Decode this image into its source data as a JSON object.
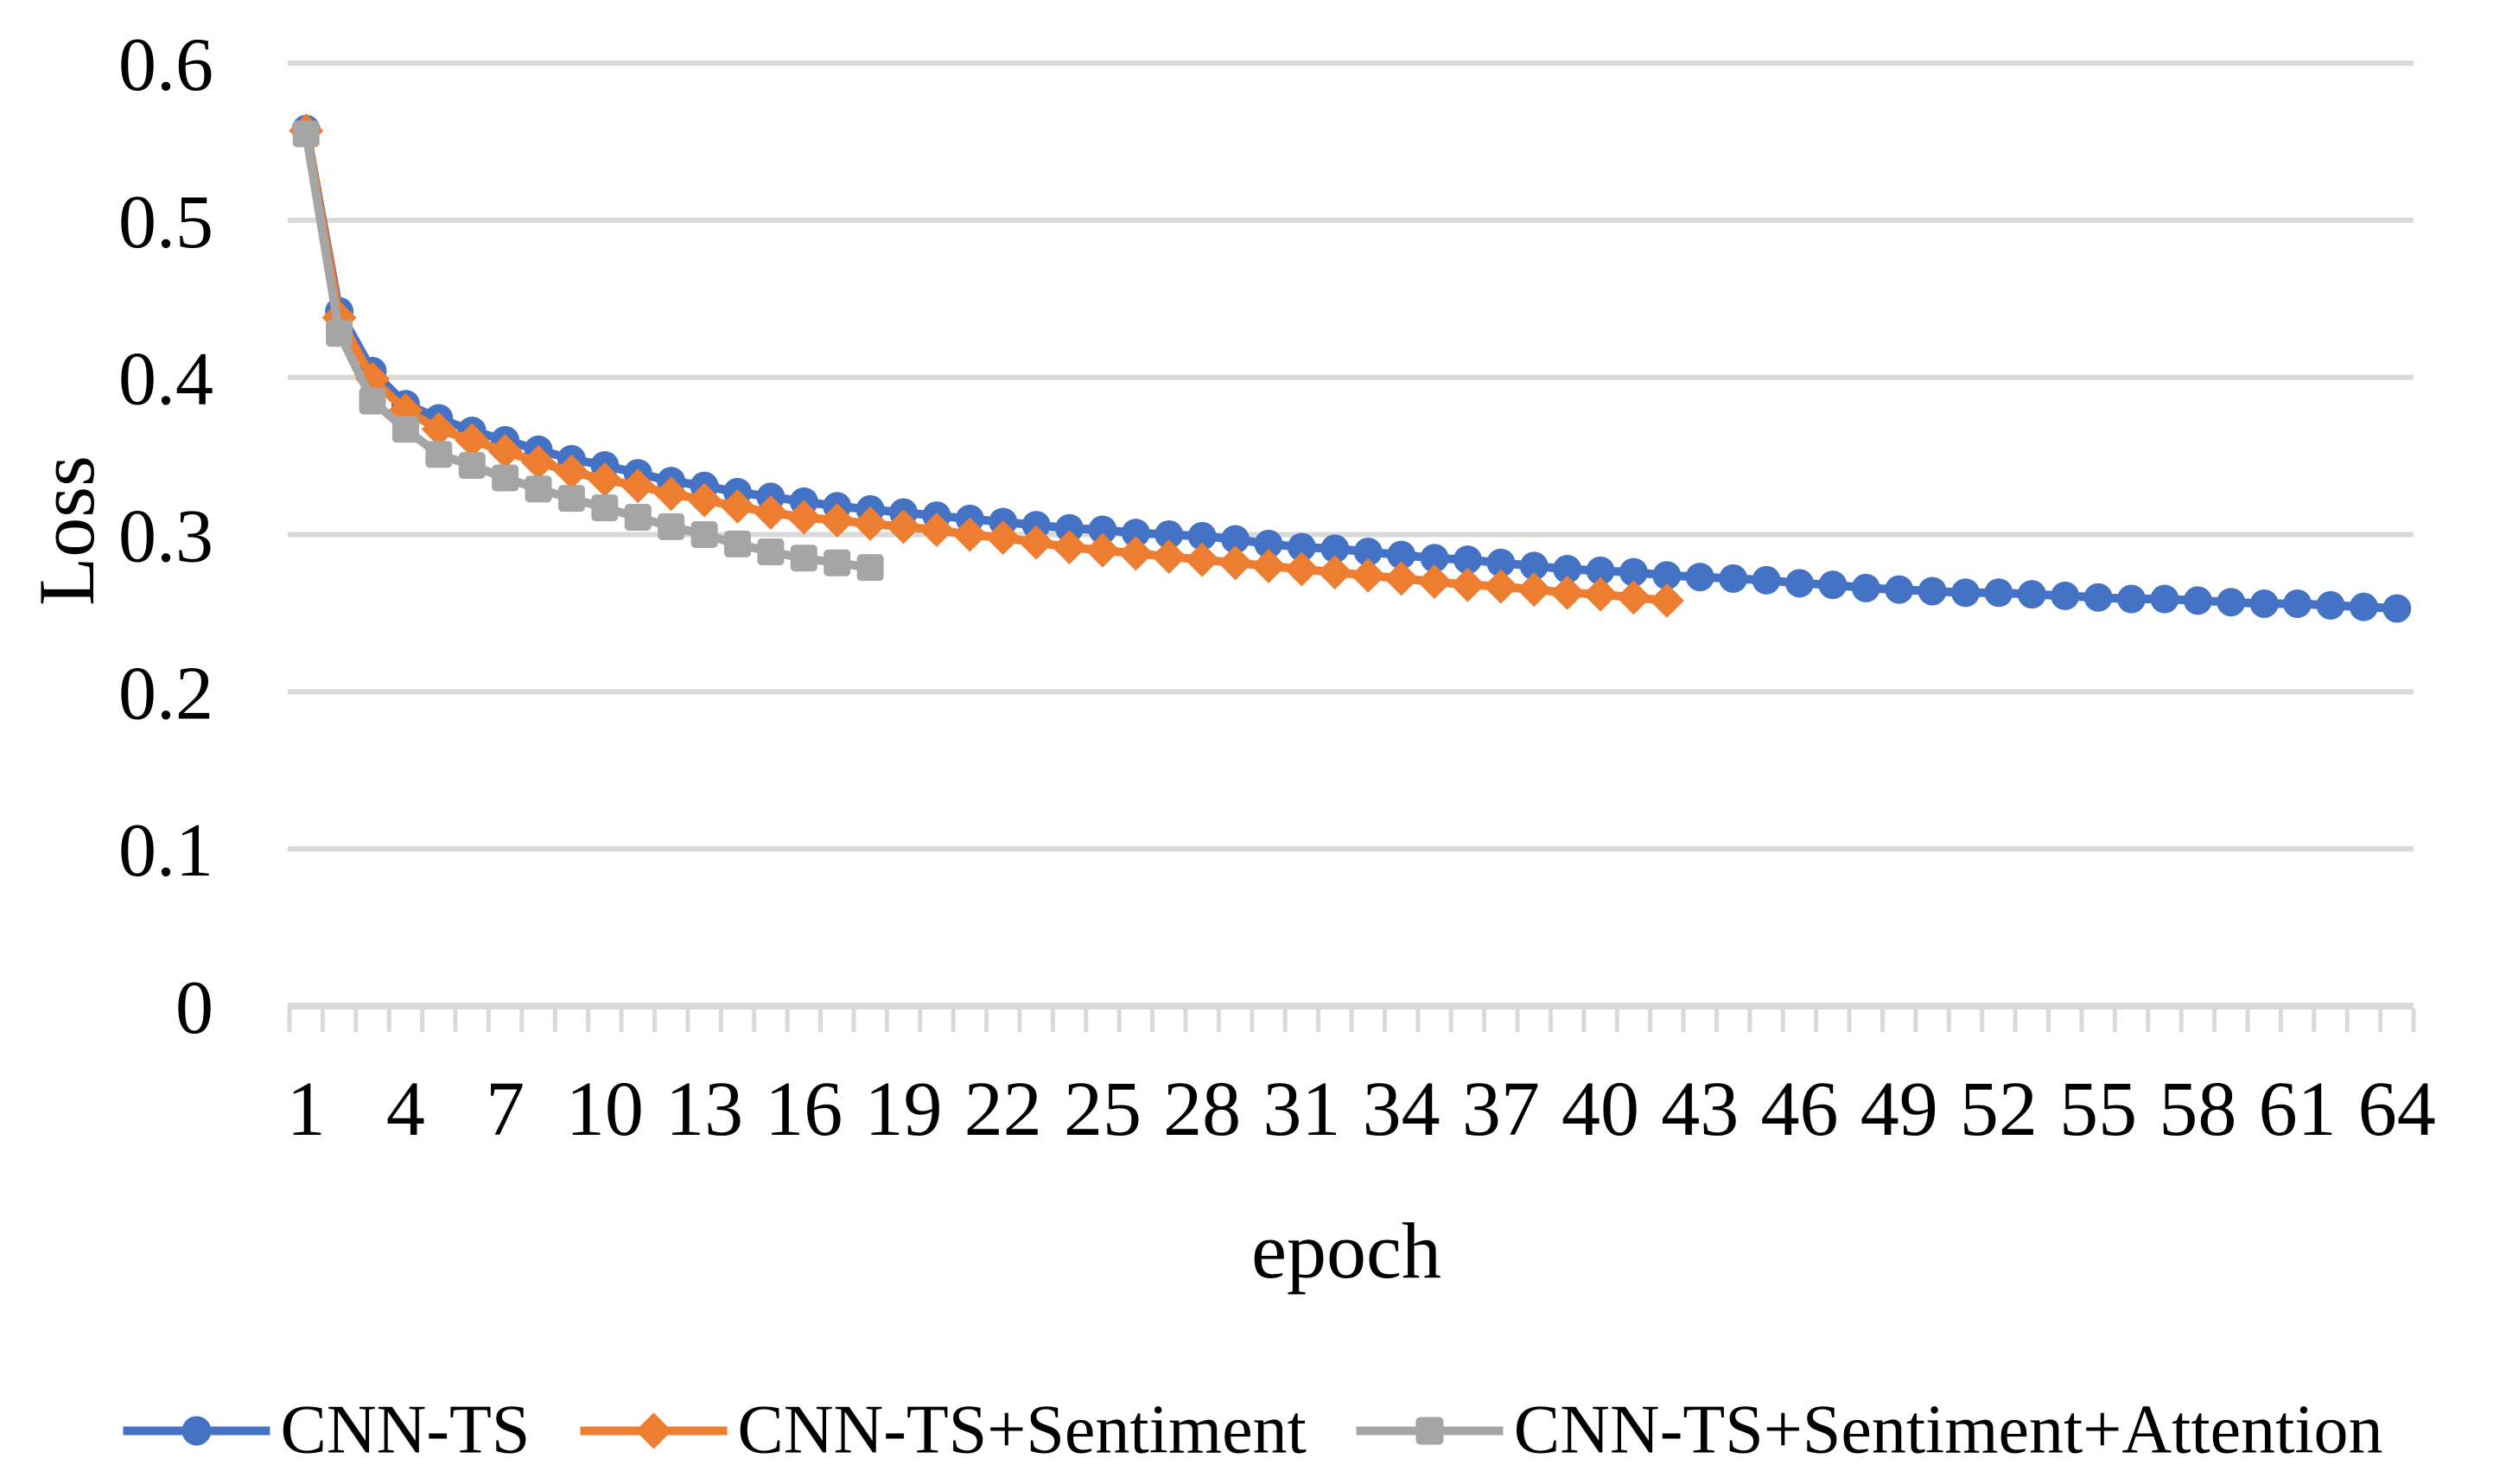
{
  "chart_data": {
    "type": "line",
    "title": "",
    "xlabel": "epoch",
    "ylabel": "Loss",
    "ylim": [
      0,
      0.6
    ],
    "grid": true,
    "legend_position": "bottom",
    "y_ticks": [
      0,
      0.1,
      0.2,
      0.3,
      0.4,
      0.5,
      0.6
    ],
    "y_tick_labels": [
      "0",
      "0.1",
      "0.2",
      "0.3",
      "0.4",
      "0.5",
      "0.6"
    ],
    "x_tick_labels": [
      "1",
      "4",
      "7",
      "10",
      "13",
      "16",
      "19",
      "22",
      "25",
      "28",
      "31",
      "34",
      "37",
      "40",
      "43",
      "46",
      "49",
      "52",
      "55",
      "58",
      "61",
      "64"
    ],
    "x_ticks": [
      1,
      4,
      7,
      10,
      13,
      16,
      19,
      22,
      25,
      28,
      31,
      34,
      37,
      40,
      43,
      46,
      49,
      52,
      55,
      58,
      61,
      64
    ],
    "x_categories": 64,
    "minor_tick_interval": 1,
    "colors": {
      "gridline": "#D9D9D9",
      "axis_line": "#D9D9D9",
      "text": "#000000",
      "background": "#FFFFFF"
    },
    "series": [
      {
        "name": "CNN-TS",
        "color": "#4472C4",
        "marker": "circle",
        "x_start": 1,
        "values": [
          0.558,
          0.442,
          0.404,
          0.383,
          0.374,
          0.366,
          0.36,
          0.354,
          0.348,
          0.344,
          0.339,
          0.334,
          0.331,
          0.327,
          0.324,
          0.321,
          0.318,
          0.316,
          0.314,
          0.312,
          0.31,
          0.308,
          0.306,
          0.304,
          0.303,
          0.301,
          0.3,
          0.299,
          0.297,
          0.294,
          0.292,
          0.291,
          0.289,
          0.287,
          0.285,
          0.284,
          0.282,
          0.28,
          0.278,
          0.277,
          0.276,
          0.274,
          0.273,
          0.272,
          0.271,
          0.269,
          0.268,
          0.266,
          0.265,
          0.264,
          0.263,
          0.263,
          0.262,
          0.261,
          0.26,
          0.259,
          0.259,
          0.258,
          0.257,
          0.256,
          0.256,
          0.255,
          0.254,
          0.253
        ]
      },
      {
        "name": "CNN-TS+Sentiment",
        "color": "#ED7D31",
        "marker": "diamond",
        "x_start": 1,
        "values": [
          0.557,
          0.438,
          0.399,
          0.379,
          0.367,
          0.36,
          0.353,
          0.346,
          0.34,
          0.335,
          0.331,
          0.326,
          0.322,
          0.318,
          0.314,
          0.311,
          0.309,
          0.307,
          0.305,
          0.303,
          0.3,
          0.298,
          0.295,
          0.292,
          0.29,
          0.288,
          0.286,
          0.284,
          0.282,
          0.28,
          0.278,
          0.276,
          0.274,
          0.272,
          0.27,
          0.268,
          0.267,
          0.265,
          0.263,
          0.262,
          0.26,
          0.258
        ]
      },
      {
        "name": "CNN-TS+Sentiment+Attention",
        "color": "#A5A5A5",
        "marker": "square",
        "x_start": 1,
        "values": [
          0.555,
          0.428,
          0.385,
          0.367,
          0.351,
          0.344,
          0.336,
          0.329,
          0.323,
          0.317,
          0.311,
          0.305,
          0.3,
          0.294,
          0.289,
          0.285,
          0.282,
          0.279
        ]
      }
    ]
  }
}
